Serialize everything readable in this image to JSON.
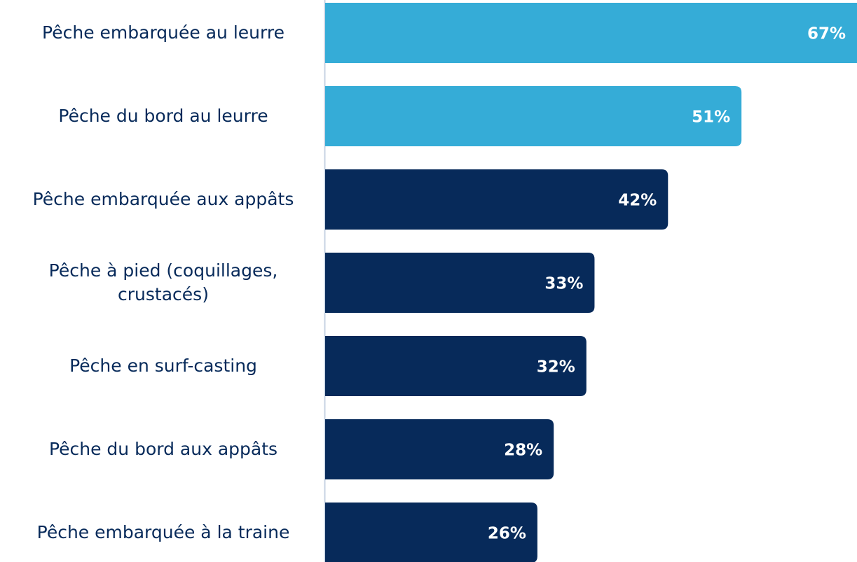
{
  "chart_data": {
    "type": "bar",
    "orientation": "horizontal",
    "categories": [
      "Pêche embarquée au leurre",
      "Pêche du bord au leurre",
      "Pêche embarquée aux appâts",
      "Pêche à pied (coquillages, crustacés)",
      "Pêche en surf-casting",
      "Pêche du bord aux appâts",
      "Pêche embarquée à la traine"
    ],
    "values": [
      67,
      51,
      42,
      33,
      32,
      28,
      26
    ],
    "value_labels": [
      "67%",
      "51%",
      "42%",
      "33%",
      "32%",
      "28%",
      "26%"
    ],
    "colors": [
      "#35acd7",
      "#35acd7",
      "#072a5a",
      "#072a5a",
      "#072a5a",
      "#072a5a",
      "#072a5a"
    ]
  }
}
